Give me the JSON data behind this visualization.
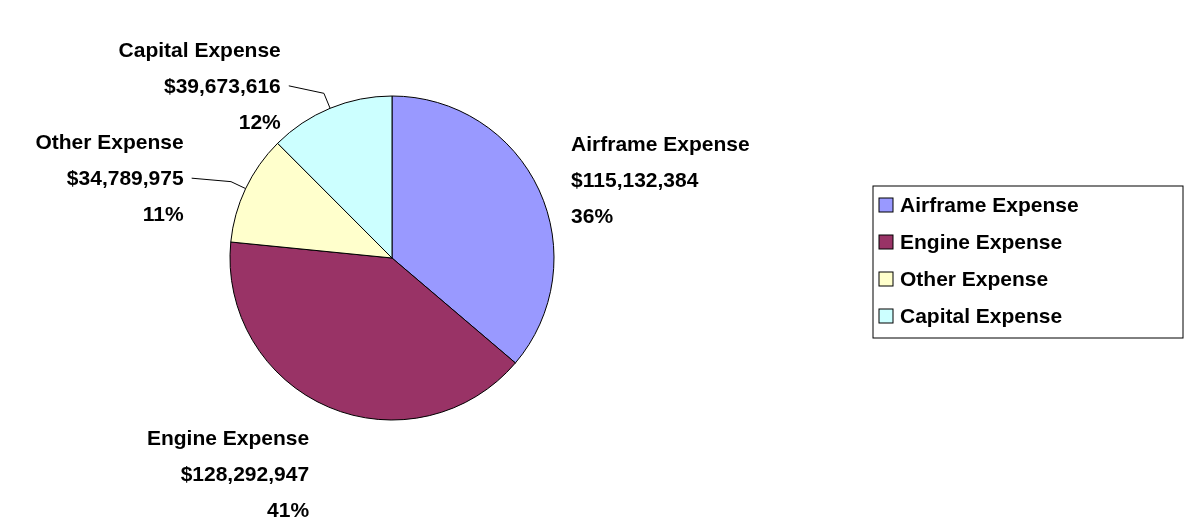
{
  "chart_data": {
    "type": "pie",
    "categories": [
      "Airframe Expense",
      "Engine Expense",
      "Other Expense",
      "Capital Expense"
    ],
    "values": [
      115132384,
      128292947,
      34789975,
      39673616
    ],
    "colors": [
      "#9999ff",
      "#993366",
      "#ffffcc",
      "#ccffff"
    ],
    "value_labels": [
      "$115,132,384\n36%",
      "$128,292,947\n41%",
      "$34,789,975\n11%",
      "$39,673,616\n12%"
    ],
    "legend": "right"
  }
}
